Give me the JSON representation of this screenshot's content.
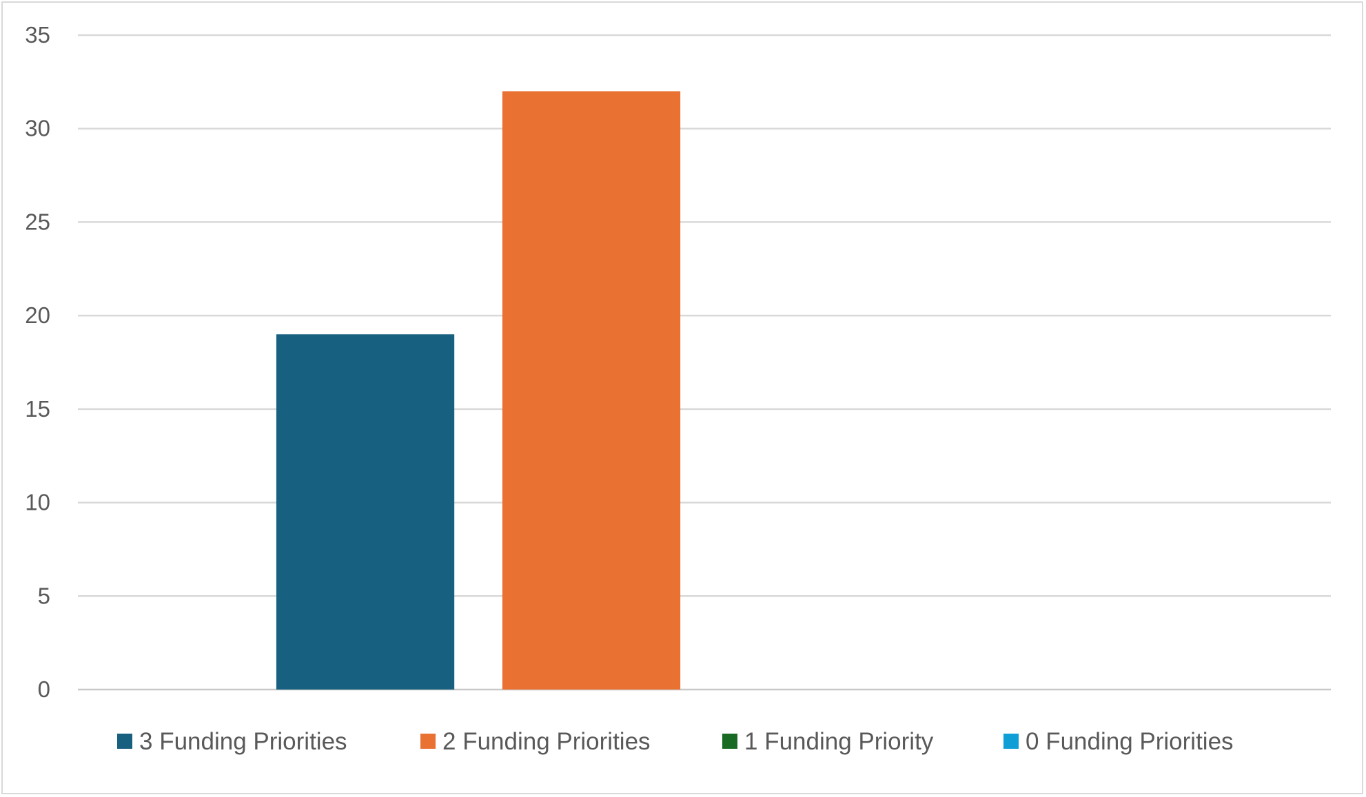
{
  "chart_data": {
    "type": "bar",
    "title": "",
    "xlabel": "",
    "ylabel": "",
    "ylim": [
      0,
      35
    ],
    "yticks": [
      0,
      5,
      10,
      15,
      20,
      25,
      30,
      35
    ],
    "grid": true,
    "legend_position": "bottom",
    "categories": [
      ""
    ],
    "series": [
      {
        "name": "3 Funding Priorities",
        "color": "#17607f",
        "values": [
          19
        ]
      },
      {
        "name": "2 Funding Priorities",
        "color": "#e97132",
        "values": [
          32
        ]
      },
      {
        "name": "1 Funding Priority",
        "color": "#196b24",
        "values": [
          0
        ]
      },
      {
        "name": "0 Funding Priorities",
        "color": "#0f9ed5",
        "values": [
          0
        ]
      }
    ]
  }
}
